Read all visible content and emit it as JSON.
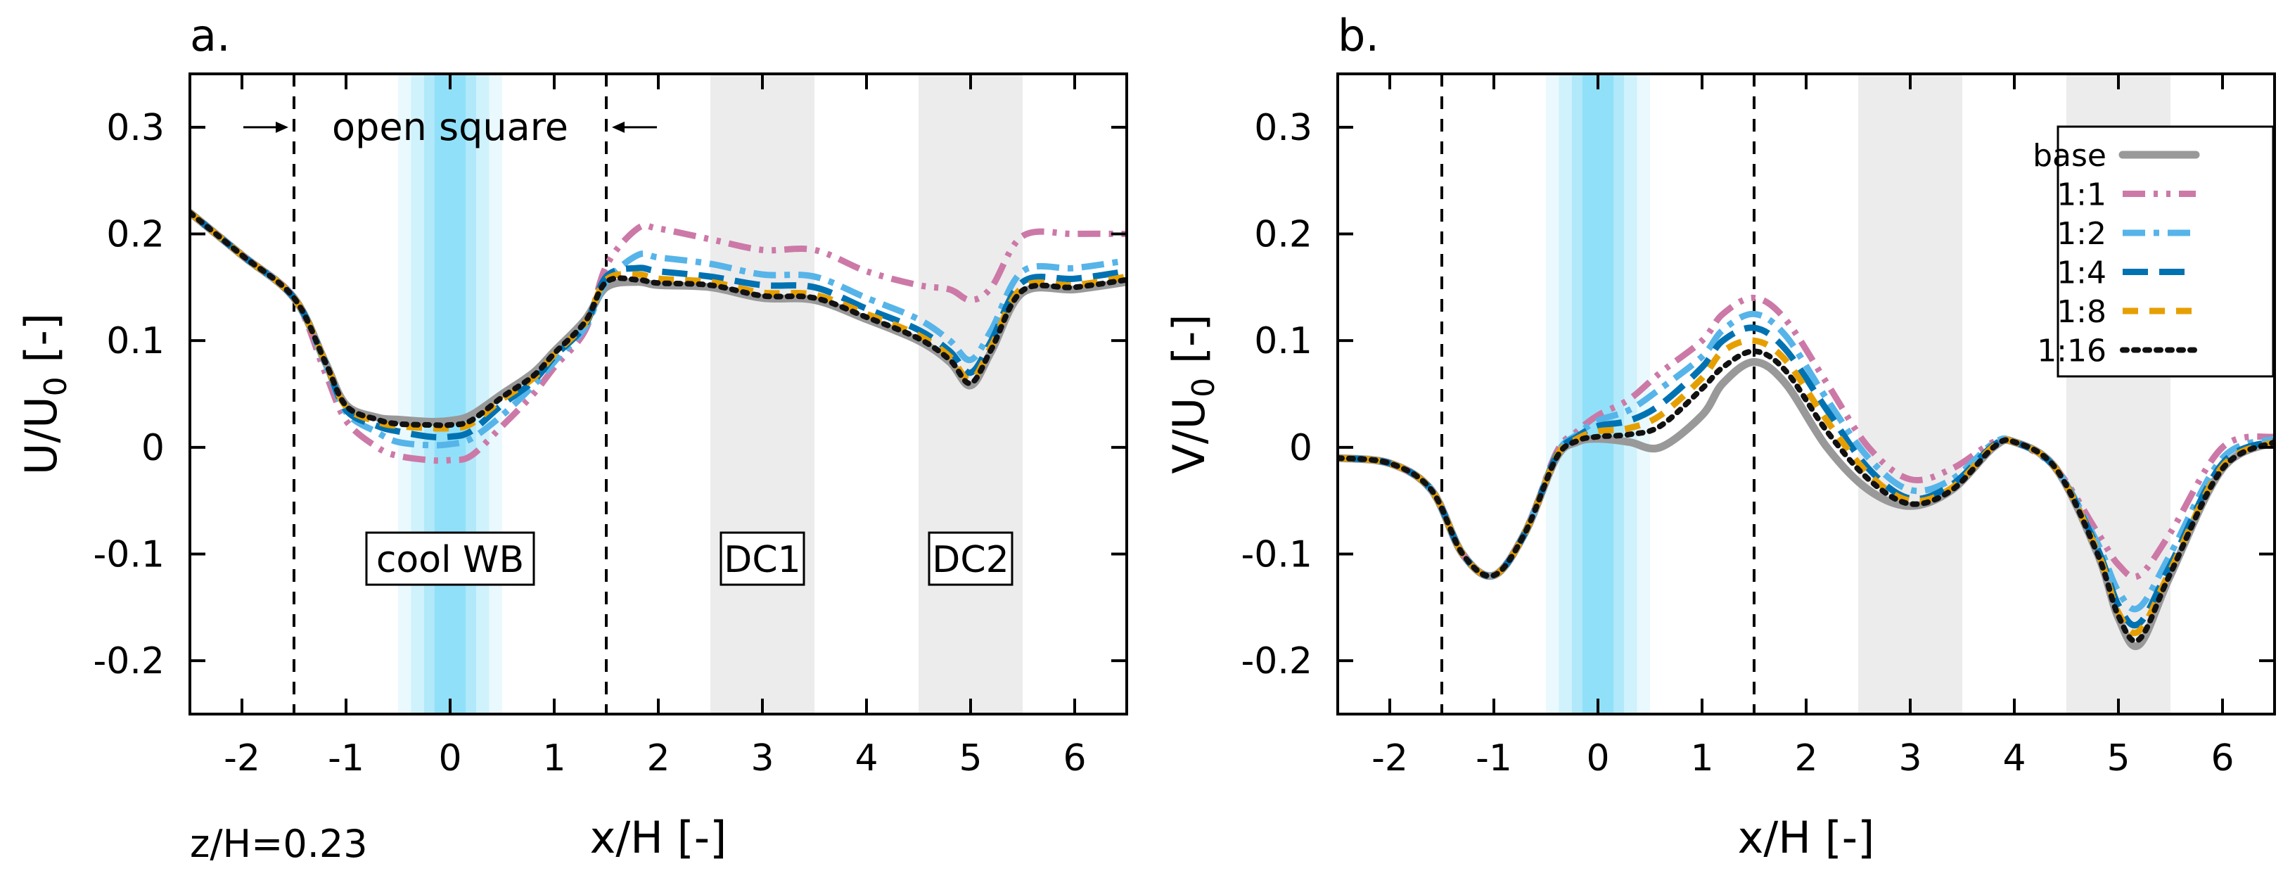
{
  "figure_note": "z/H=0.23",
  "legend": {
    "entries": [
      {
        "key": "base",
        "label": "base"
      },
      {
        "key": "r1",
        "label": "1:1"
      },
      {
        "key": "r2",
        "label": "1:2"
      },
      {
        "key": "r4",
        "label": "1:4"
      },
      {
        "key": "r8",
        "label": "1:8"
      },
      {
        "key": "r16",
        "label": "1:16"
      }
    ]
  },
  "colors": {
    "base": "#999999",
    "r1": "#cc79a7",
    "r2": "#56b4e9",
    "r4": "#0072b2",
    "r8": "#e69f00",
    "r16": "#111111",
    "cool_band": "#56d0f5",
    "dc_band": "#ececec"
  },
  "chart_data": [
    {
      "type": "line",
      "panel_label": "a.",
      "title": "",
      "xlabel": "x/H [-]",
      "ylabel": "U/U",
      "ylabel_sub": "0",
      "ylabel_tail": " [-]",
      "xlim": [
        -2.5,
        6.5
      ],
      "ylim": [
        -0.25,
        0.35
      ],
      "xticks": [
        -2,
        -1,
        0,
        1,
        2,
        3,
        4,
        5,
        6
      ],
      "xtick_labels": [
        "-2",
        "-1",
        "0",
        "1",
        "2",
        "3",
        "4",
        "5",
        "6"
      ],
      "yticks": [
        -0.2,
        -0.1,
        0,
        0.1,
        0.2,
        0.3
      ],
      "ytick_labels": [
        "-0.2",
        "-0.1",
        "0",
        "0.1",
        "0.2",
        "0.3"
      ],
      "vlines": [
        -1.5,
        1.5
      ],
      "bands": [
        {
          "key": "cool",
          "x": [
            -0.5,
            0.5
          ],
          "label": "cool WB"
        },
        {
          "key": "dc1",
          "x": [
            2.5,
            3.5
          ],
          "label": "DC1"
        },
        {
          "key": "dc2",
          "x": [
            4.5,
            5.5
          ],
          "label": "DC2"
        }
      ],
      "annotation": {
        "text": "open square",
        "x_from": -1.5,
        "x_to": 1.5,
        "y": 0.3
      },
      "x": [
        -2.5,
        -2.0,
        -1.5,
        -1.2,
        -1.0,
        -0.7,
        -0.5,
        -0.2,
        0.0,
        0.2,
        0.5,
        0.8,
        1.0,
        1.3,
        1.5,
        1.8,
        2.0,
        2.5,
        3.0,
        3.5,
        4.0,
        4.5,
        4.8,
        5.0,
        5.2,
        5.5,
        6.0,
        6.5
      ],
      "series": [
        {
          "name": "base",
          "key": "base",
          "values": [
            0.22,
            0.18,
            0.14,
            0.08,
            0.04,
            0.028,
            0.026,
            0.024,
            0.025,
            0.03,
            0.05,
            0.07,
            0.09,
            0.12,
            0.15,
            0.155,
            0.152,
            0.15,
            0.14,
            0.138,
            0.12,
            0.1,
            0.08,
            0.058,
            0.09,
            0.145,
            0.148,
            0.155
          ]
        },
        {
          "name": "1:1",
          "key": "r1",
          "values": [
            0.22,
            0.18,
            0.14,
            0.07,
            0.025,
            0.0,
            -0.008,
            -0.012,
            -0.012,
            -0.008,
            0.02,
            0.05,
            0.075,
            0.11,
            0.17,
            0.205,
            0.205,
            0.195,
            0.185,
            0.185,
            0.165,
            0.152,
            0.148,
            0.138,
            0.15,
            0.198,
            0.2,
            0.2
          ]
        },
        {
          "name": "1:2",
          "key": "r2",
          "values": [
            0.22,
            0.18,
            0.14,
            0.078,
            0.033,
            0.014,
            0.005,
            0.002,
            0.003,
            0.008,
            0.03,
            0.058,
            0.08,
            0.113,
            0.155,
            0.18,
            0.178,
            0.172,
            0.162,
            0.16,
            0.14,
            0.12,
            0.1,
            0.082,
            0.11,
            0.165,
            0.168,
            0.175
          ]
        },
        {
          "name": "1:4",
          "key": "r4",
          "values": [
            0.22,
            0.18,
            0.14,
            0.08,
            0.035,
            0.02,
            0.015,
            0.01,
            0.01,
            0.015,
            0.04,
            0.062,
            0.085,
            0.115,
            0.16,
            0.168,
            0.165,
            0.16,
            0.152,
            0.15,
            0.13,
            0.11,
            0.09,
            0.07,
            0.1,
            0.155,
            0.158,
            0.165
          ]
        },
        {
          "name": "1:8",
          "key": "r8",
          "values": [
            0.22,
            0.18,
            0.14,
            0.08,
            0.038,
            0.024,
            0.02,
            0.018,
            0.018,
            0.022,
            0.045,
            0.065,
            0.087,
            0.117,
            0.157,
            0.162,
            0.158,
            0.155,
            0.145,
            0.143,
            0.125,
            0.105,
            0.085,
            0.063,
            0.095,
            0.15,
            0.152,
            0.16
          ]
        },
        {
          "name": "1:16",
          "key": "r16",
          "values": [
            0.22,
            0.18,
            0.14,
            0.08,
            0.039,
            0.026,
            0.022,
            0.021,
            0.021,
            0.025,
            0.047,
            0.067,
            0.088,
            0.118,
            0.155,
            0.157,
            0.154,
            0.152,
            0.142,
            0.14,
            0.122,
            0.102,
            0.082,
            0.06,
            0.092,
            0.147,
            0.15,
            0.157
          ]
        }
      ]
    },
    {
      "type": "line",
      "panel_label": "b.",
      "title": "",
      "xlabel": "x/H [-]",
      "ylabel": "V/U",
      "ylabel_sub": "0",
      "ylabel_tail": " [-]",
      "xlim": [
        -2.5,
        6.5
      ],
      "ylim": [
        -0.25,
        0.35
      ],
      "xticks": [
        -2,
        -1,
        0,
        1,
        2,
        3,
        4,
        5,
        6
      ],
      "xtick_labels": [
        "-2",
        "-1",
        "0",
        "1",
        "2",
        "3",
        "4",
        "5",
        "6"
      ],
      "yticks": [
        -0.2,
        -0.1,
        0,
        0.1,
        0.2,
        0.3
      ],
      "ytick_labels": [
        "-0.2",
        "-0.1",
        "0",
        "0.1",
        "0.2",
        "0.3"
      ],
      "vlines": [
        -1.5,
        1.5
      ],
      "bands": [
        {
          "key": "cool",
          "x": [
            -0.5,
            0.5
          ]
        },
        {
          "key": "dc1",
          "x": [
            2.5,
            3.5
          ]
        },
        {
          "key": "dc2",
          "x": [
            4.5,
            5.5
          ]
        }
      ],
      "legend_position": "top-right",
      "x": [
        -2.5,
        -2.0,
        -1.6,
        -1.3,
        -1.0,
        -0.7,
        -0.4,
        -0.2,
        0.0,
        0.3,
        0.6,
        1.0,
        1.2,
        1.5,
        1.8,
        2.2,
        2.6,
        3.0,
        3.4,
        3.8,
        4.0,
        4.4,
        4.8,
        5.0,
        5.2,
        5.5,
        6.0,
        6.5
      ],
      "series": [
        {
          "name": "base",
          "key": "base",
          "values": [
            -0.01,
            -0.015,
            -0.04,
            -0.1,
            -0.12,
            -0.08,
            -0.01,
            0.005,
            0.008,
            0.005,
            0.0,
            0.03,
            0.06,
            0.08,
            0.06,
            0.0,
            -0.04,
            -0.055,
            -0.04,
            0.0,
            0.005,
            -0.02,
            -0.1,
            -0.16,
            -0.185,
            -0.12,
            -0.02,
            0.005
          ]
        },
        {
          "name": "1:1",
          "key": "r1",
          "values": [
            -0.01,
            -0.015,
            -0.04,
            -0.1,
            -0.12,
            -0.08,
            -0.005,
            0.015,
            0.03,
            0.045,
            0.07,
            0.1,
            0.125,
            0.14,
            0.12,
            0.06,
            0.0,
            -0.03,
            -0.02,
            0.005,
            0.005,
            -0.02,
            -0.08,
            -0.11,
            -0.12,
            -0.08,
            0.0,
            0.01
          ]
        },
        {
          "name": "1:2",
          "key": "r2",
          "values": [
            -0.01,
            -0.015,
            -0.04,
            -0.1,
            -0.12,
            -0.08,
            -0.007,
            0.012,
            0.025,
            0.035,
            0.055,
            0.085,
            0.11,
            0.125,
            0.105,
            0.045,
            -0.01,
            -0.04,
            -0.03,
            0.004,
            0.005,
            -0.02,
            -0.09,
            -0.135,
            -0.15,
            -0.1,
            -0.01,
            0.008
          ]
        },
        {
          "name": "1:4",
          "key": "r4",
          "values": [
            -0.01,
            -0.015,
            -0.04,
            -0.1,
            -0.12,
            -0.08,
            -0.008,
            0.01,
            0.02,
            0.025,
            0.04,
            0.075,
            0.1,
            0.112,
            0.092,
            0.035,
            -0.02,
            -0.048,
            -0.035,
            0.002,
            0.005,
            -0.02,
            -0.095,
            -0.148,
            -0.165,
            -0.11,
            -0.015,
            0.006
          ]
        },
        {
          "name": "1:8",
          "key": "r8",
          "values": [
            -0.01,
            -0.015,
            -0.04,
            -0.1,
            -0.12,
            -0.08,
            -0.009,
            0.008,
            0.015,
            0.018,
            0.03,
            0.065,
            0.09,
            0.1,
            0.082,
            0.025,
            -0.025,
            -0.05,
            -0.038,
            0.001,
            0.005,
            -0.02,
            -0.098,
            -0.155,
            -0.172,
            -0.115,
            -0.018,
            0.005
          ]
        },
        {
          "name": "1:16",
          "key": "r16",
          "values": [
            -0.01,
            -0.015,
            -0.04,
            -0.1,
            -0.12,
            -0.08,
            -0.01,
            0.006,
            0.01,
            0.012,
            0.02,
            0.055,
            0.075,
            0.09,
            0.072,
            0.015,
            -0.03,
            -0.053,
            -0.04,
            0.0,
            0.005,
            -0.02,
            -0.1,
            -0.158,
            -0.18,
            -0.118,
            -0.02,
            0.005
          ]
        }
      ]
    }
  ]
}
